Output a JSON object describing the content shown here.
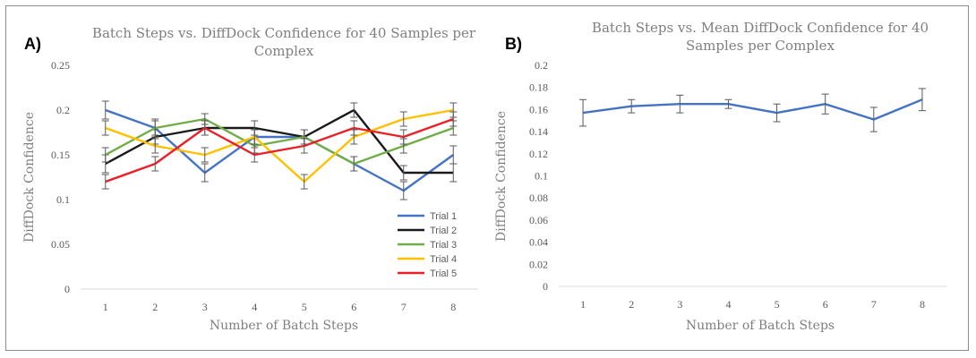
{
  "chart_data": [
    {
      "panel_label": "A)",
      "type": "line",
      "title": [
        "Batch Steps vs. DiffDock Confidence for 40 Samples per",
        "Complex"
      ],
      "xlabel": "Number of Batch Steps",
      "ylabel": "DiffDock Confidence",
      "categories": [
        "1",
        "2",
        "3",
        "4",
        "5",
        "6",
        "7",
        "8"
      ],
      "ylim": [
        0,
        0.25
      ],
      "yticks": [
        "0",
        "0.05",
        "0.1",
        "0.15",
        "0.2",
        "0.25"
      ],
      "grid": false,
      "legend": "bottom-right",
      "series": [
        {
          "name": "Trial 1",
          "color": "#4472c4",
          "values": [
            0.2,
            0.18,
            0.13,
            0.17,
            0.17,
            0.14,
            0.11,
            0.15
          ],
          "errors": [
            0.01,
            0.008,
            0.01,
            0.008,
            0.008,
            0.008,
            0.01,
            0.01
          ]
        },
        {
          "name": "Trial 2",
          "color": "#1a1a1a",
          "values": [
            0.14,
            0.17,
            0.18,
            0.18,
            0.17,
            0.2,
            0.13,
            0.13
          ],
          "errors": [
            0.01,
            0.008,
            0.008,
            0.008,
            0.008,
            0.008,
            0.008,
            0.01
          ]
        },
        {
          "name": "Trial 3",
          "color": "#70ad47",
          "values": [
            0.15,
            0.18,
            0.19,
            0.16,
            0.17,
            0.14,
            0.16,
            0.18
          ],
          "errors": [
            0.008,
            0.01,
            0.006,
            0.008,
            0.008,
            0.008,
            0.008,
            0.008
          ]
        },
        {
          "name": "Trial 4",
          "color": "#ffc000",
          "values": [
            0.18,
            0.16,
            0.15,
            0.17,
            0.12,
            0.17,
            0.19,
            0.2
          ],
          "errors": [
            0.008,
            0.008,
            0.008,
            0.008,
            0.008,
            0.008,
            0.008,
            0.008
          ]
        },
        {
          "name": "Trial 5",
          "color": "#e8202a",
          "values": [
            0.12,
            0.14,
            0.18,
            0.15,
            0.16,
            0.18,
            0.17,
            0.19
          ],
          "errors": [
            0.008,
            0.008,
            0.008,
            0.008,
            0.008,
            0.008,
            0.008,
            0.008
          ]
        }
      ]
    },
    {
      "panel_label": "B)",
      "type": "line",
      "title": [
        "Batch Steps vs. Mean DiffDock Confidence for 40",
        "Samples per Complex"
      ],
      "xlabel": "Number of Batch Steps",
      "ylabel": "DiffDock Confidence",
      "categories": [
        "1",
        "2",
        "3",
        "4",
        "5",
        "6",
        "7",
        "8"
      ],
      "ylim": [
        0,
        0.2
      ],
      "yticks": [
        "0",
        "0.02",
        "0.04",
        "0.06",
        "0.08",
        "0.1",
        "0.12",
        "0.14",
        "0.16",
        "0.18",
        "0.2"
      ],
      "grid": false,
      "legend": "none",
      "series": [
        {
          "name": "Mean",
          "color": "#4472c4",
          "values": [
            0.157,
            0.163,
            0.165,
            0.165,
            0.157,
            0.165,
            0.151,
            0.169
          ],
          "errors": [
            0.012,
            0.006,
            0.008,
            0.004,
            0.008,
            0.009,
            0.011,
            0.01
          ]
        }
      ]
    }
  ]
}
